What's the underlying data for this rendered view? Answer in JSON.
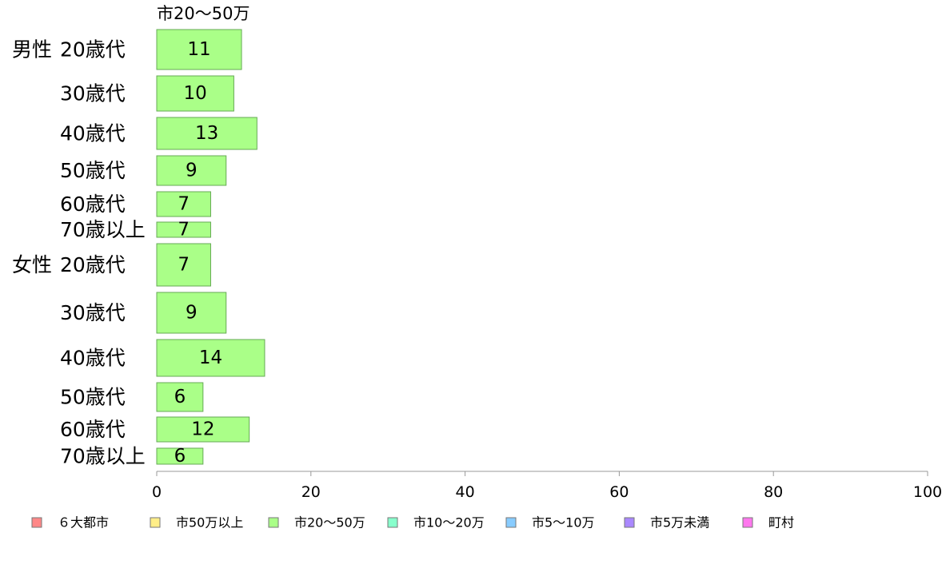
{
  "chart_data": {
    "type": "bar",
    "orientation": "horizontal",
    "title": "",
    "series_heading": "市20～50万",
    "groups": [
      {
        "label": "男性",
        "rows": [
          "20歳代",
          "30歳代",
          "40歳代",
          "50歳代",
          "60歳代",
          "70歳以上"
        ]
      },
      {
        "label": "女性",
        "rows": [
          "20歳代",
          "30歳代",
          "40歳代",
          "50歳代",
          "60歳代",
          "70歳以上"
        ]
      }
    ],
    "series": [
      {
        "name": "市20～50万",
        "color": "#aaff88",
        "values": [
          11,
          10,
          13,
          9,
          7,
          7,
          7,
          9,
          14,
          6,
          12,
          6
        ]
      }
    ],
    "xlim": [
      0,
      100
    ],
    "xticks": [
      0,
      20,
      40,
      60,
      80,
      100
    ],
    "grid": false,
    "legend": {
      "placement": "bottom",
      "items": [
        {
          "label": "６大都市",
          "color": "#ff8888"
        },
        {
          "label": "市50万以上",
          "color": "#ffee88"
        },
        {
          "label": "市20～50万",
          "color": "#aaff88"
        },
        {
          "label": "市10～20万",
          "color": "#88ffcc"
        },
        {
          "label": "市5～10万",
          "color": "#88ccff"
        },
        {
          "label": "市5万未満",
          "color": "#aa88ff"
        },
        {
          "label": "町村",
          "color": "#ff77ee"
        }
      ]
    }
  }
}
